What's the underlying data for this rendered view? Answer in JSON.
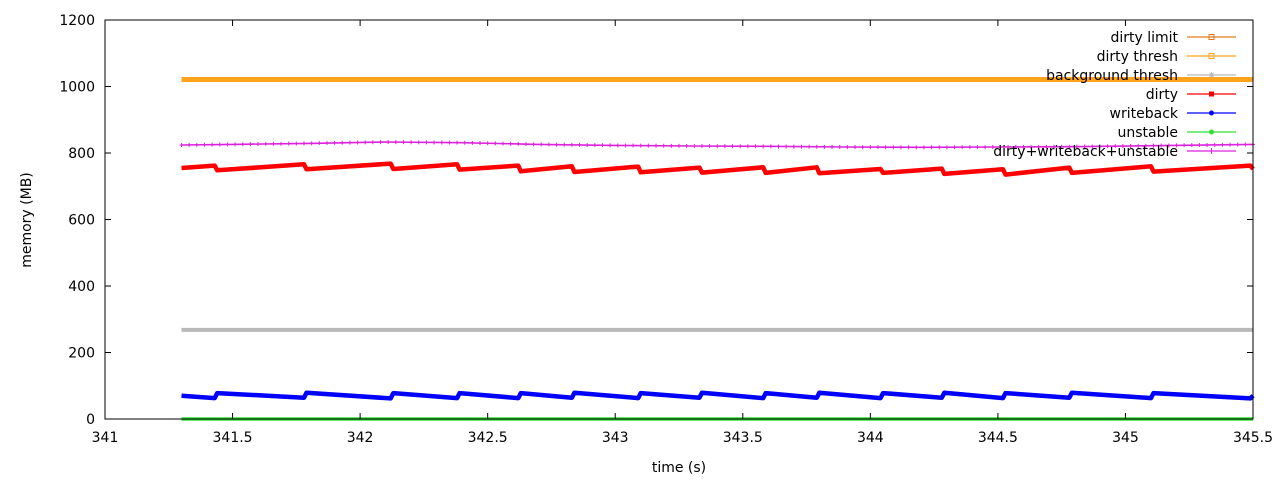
{
  "chart_data": {
    "type": "line",
    "title": "",
    "xlabel": "time (s)",
    "ylabel": "memory (MB)",
    "xlim": [
      341,
      345.5
    ],
    "ylim": [
      0,
      1200
    ],
    "x_ticks": [
      "341",
      "341.5",
      "342",
      "342.5",
      "343",
      "343.5",
      "344",
      "344.5",
      "345",
      "345.5"
    ],
    "y_ticks": [
      "0",
      "200",
      "400",
      "600",
      "800",
      "1000",
      "1200"
    ],
    "grid": false,
    "legend_position": "top-right",
    "series": [
      {
        "name": "dirty limit",
        "color": "#e07a1f",
        "marker": "square-open",
        "x": [
          341.3,
          345.5
        ],
        "y": [
          1022,
          1022
        ]
      },
      {
        "name": "dirty thresh",
        "color": "#ffa31a",
        "marker": "square-open",
        "x": [
          341.3,
          345.5
        ],
        "y": [
          1021,
          1021
        ]
      },
      {
        "name": "background thresh",
        "color": "#b8b8b8",
        "marker": "star",
        "x": [
          341.3,
          345.5
        ],
        "y": [
          268,
          268
        ]
      },
      {
        "name": "dirty",
        "color": "#ff0000",
        "marker": "square",
        "x": [
          341.3,
          341.43,
          341.44,
          341.78,
          341.79,
          342.12,
          342.13,
          342.38,
          342.39,
          342.62,
          342.63,
          342.83,
          342.84,
          343.09,
          343.1,
          343.33,
          343.34,
          343.58,
          343.59,
          343.79,
          343.8,
          344.04,
          344.05,
          344.28,
          344.29,
          344.52,
          344.53,
          344.78,
          344.79,
          345.1,
          345.11,
          345.49,
          345.5
        ],
        "y": [
          755,
          762,
          748,
          766,
          751,
          768,
          752,
          766,
          750,
          762,
          745,
          760,
          743,
          759,
          742,
          756,
          741,
          757,
          740,
          757,
          739,
          752,
          740,
          753,
          737,
          751,
          735,
          756,
          740,
          760,
          744,
          762,
          752
        ]
      },
      {
        "name": "writeback",
        "color": "#0000ff",
        "marker": "circle",
        "x": [
          341.3,
          341.43,
          341.44,
          341.78,
          341.79,
          342.12,
          342.13,
          342.38,
          342.39,
          342.62,
          342.63,
          342.83,
          342.84,
          343.09,
          343.1,
          343.33,
          343.34,
          343.58,
          343.59,
          343.79,
          343.8,
          344.04,
          344.05,
          344.28,
          344.29,
          344.52,
          344.53,
          344.78,
          344.79,
          345.1,
          345.11,
          345.49,
          345.5
        ],
        "y": [
          70,
          63,
          78,
          64,
          79,
          62,
          78,
          63,
          78,
          63,
          78,
          64,
          79,
          63,
          78,
          64,
          79,
          63,
          78,
          64,
          79,
          63,
          78,
          64,
          79,
          63,
          78,
          64,
          79,
          63,
          78,
          62,
          70
        ]
      },
      {
        "name": "unstable",
        "color": "#33dd33",
        "marker": "circle",
        "x": [
          341.3,
          345.5
        ],
        "y": [
          0,
          0
        ]
      },
      {
        "name": "dirty+writeback+unstable",
        "color": "#dd22dd",
        "marker": "plus",
        "x": [
          341.3,
          341.5,
          341.8,
          342.1,
          342.4,
          342.7,
          343.0,
          343.3,
          343.6,
          343.9,
          344.2,
          344.5,
          344.8,
          345.1,
          345.5
        ],
        "y": [
          824,
          826,
          829,
          833,
          831,
          826,
          823,
          821,
          820,
          818,
          817,
          818,
          819,
          822,
          826
        ]
      }
    ]
  }
}
